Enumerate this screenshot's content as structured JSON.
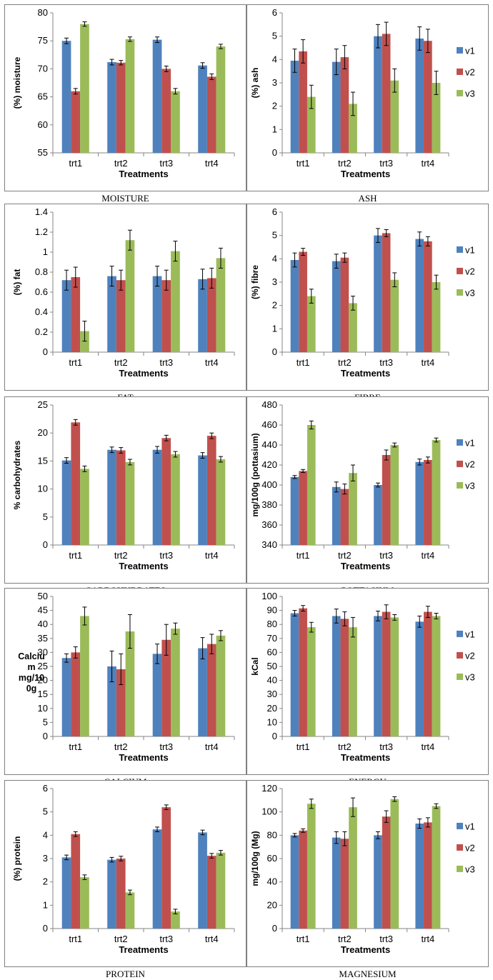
{
  "series_colors": {
    "v1": "#4f81bd",
    "v2": "#c0504d",
    "v3": "#9bbb59"
  },
  "chart_data": [
    {
      "type": "bar",
      "caption": "MOISTURE",
      "xlabel": "Treatments",
      "ylabel": "(%)  moisture",
      "categories": [
        "trt1",
        "trt2",
        "trt3",
        "trt4"
      ],
      "ylim": [
        55,
        80
      ],
      "yticks": [
        55,
        60,
        65,
        70,
        75,
        80
      ],
      "legend": "none",
      "legend_entries": [],
      "series": [
        {
          "values": [
            75.0,
            71.2,
            75.2,
            70.6
          ],
          "errors": [
            0.5,
            0.5,
            0.5,
            0.5
          ]
        },
        {
          "values": [
            66.0,
            71.1,
            70.0,
            68.6
          ],
          "errors": [
            0.5,
            0.4,
            0.5,
            0.5
          ]
        },
        {
          "values": [
            78.0,
            75.3,
            66.0,
            74.0
          ],
          "errors": [
            0.4,
            0.4,
            0.5,
            0.4
          ]
        }
      ]
    },
    {
      "type": "bar",
      "caption": "ASH",
      "xlabel": "Treatments",
      "ylabel": "(%)  ash",
      "categories": [
        "trt1",
        "trt2",
        "trt3",
        "trt4"
      ],
      "ylim": [
        0,
        6
      ],
      "yticks": [
        0,
        1,
        2,
        3,
        4,
        5,
        6
      ],
      "legend": "right",
      "legend_entries": [
        "v1",
        "v2",
        "v3"
      ],
      "series": [
        {
          "values": [
            3.95,
            3.9,
            5.0,
            4.9
          ],
          "errors": [
            0.5,
            0.55,
            0.5,
            0.5
          ]
        },
        {
          "values": [
            4.35,
            4.1,
            5.1,
            4.8
          ],
          "errors": [
            0.5,
            0.5,
            0.5,
            0.5
          ]
        },
        {
          "values": [
            2.4,
            2.1,
            3.1,
            3.0
          ],
          "errors": [
            0.5,
            0.5,
            0.5,
            0.5
          ]
        }
      ]
    },
    {
      "type": "bar",
      "caption": "FAT",
      "xlabel": "Treatments",
      "ylabel": "(%)  fat",
      "categories": [
        "trt1",
        "trt2",
        "trt3",
        "trt4"
      ],
      "ylim": [
        0,
        1.4
      ],
      "yticks": [
        0,
        0.2,
        0.4,
        0.6,
        0.8,
        1,
        1.2,
        1.4
      ],
      "legend": "none",
      "legend_entries": [],
      "series": [
        {
          "values": [
            0.72,
            0.76,
            0.76,
            0.73
          ],
          "errors": [
            0.1,
            0.1,
            0.1,
            0.1
          ]
        },
        {
          "values": [
            0.75,
            0.72,
            0.72,
            0.74
          ],
          "errors": [
            0.1,
            0.1,
            0.1,
            0.1
          ]
        },
        {
          "values": [
            0.21,
            1.12,
            1.01,
            0.94
          ],
          "errors": [
            0.1,
            0.1,
            0.1,
            0.1
          ]
        }
      ]
    },
    {
      "type": "bar",
      "caption": "FIBRE",
      "xlabel": "Treatments",
      "ylabel": "(%)  fibre",
      "categories": [
        "trt1",
        "trt2",
        "trt3",
        "trt4"
      ],
      "ylim": [
        0,
        6
      ],
      "yticks": [
        0,
        1,
        2,
        3,
        4,
        5,
        6
      ],
      "legend": "right",
      "legend_entries": [
        "v1",
        "v2",
        "v3"
      ],
      "series": [
        {
          "values": [
            3.95,
            3.9,
            5.0,
            4.85
          ],
          "errors": [
            0.3,
            0.3,
            0.3,
            0.3
          ]
        },
        {
          "values": [
            4.3,
            4.05,
            5.1,
            4.75
          ],
          "errors": [
            0.15,
            0.2,
            0.15,
            0.2
          ]
        },
        {
          "values": [
            2.4,
            2.1,
            3.1,
            3.0
          ],
          "errors": [
            0.3,
            0.3,
            0.3,
            0.3
          ]
        }
      ]
    },
    {
      "type": "bar",
      "caption": "CARBOHYDRATES",
      "xlabel": "Treatments",
      "ylabel": "% carbohydrates",
      "categories": [
        "trt1",
        "trt2",
        "trt3",
        "trt4"
      ],
      "ylim": [
        0,
        25
      ],
      "yticks": [
        0,
        5,
        10,
        15,
        20,
        25
      ],
      "legend": "none",
      "legend_entries": [],
      "series": [
        {
          "values": [
            15.1,
            17.0,
            17.0,
            16.0
          ],
          "errors": [
            0.5,
            0.5,
            0.6,
            0.5
          ]
        },
        {
          "values": [
            21.9,
            16.9,
            19.1,
            19.5
          ],
          "errors": [
            0.5,
            0.5,
            0.5,
            0.5
          ]
        },
        {
          "values": [
            13.6,
            14.8,
            16.2,
            15.3
          ],
          "errors": [
            0.5,
            0.5,
            0.5,
            0.5
          ]
        }
      ]
    },
    {
      "type": "bar",
      "caption": "POTTASIUM",
      "xlabel": "Treatments",
      "ylabel": "mg/100g (pottasium)",
      "categories": [
        "trt1",
        "trt2",
        "trt3",
        "trt4"
      ],
      "ylim": [
        340,
        480
      ],
      "yticks": [
        340,
        360,
        380,
        400,
        420,
        440,
        460,
        480
      ],
      "legend": "right",
      "legend_entries": [
        "v1",
        "v2",
        "v3"
      ],
      "series": [
        {
          "values": [
            408,
            398,
            400,
            423
          ],
          "errors": [
            1.5,
            5,
            2,
            3
          ]
        },
        {
          "values": [
            414,
            396,
            430,
            425
          ],
          "errors": [
            1.5,
            5,
            5,
            3
          ]
        },
        {
          "values": [
            460,
            412,
            440,
            445
          ],
          "errors": [
            4,
            8,
            2,
            2
          ]
        }
      ]
    },
    {
      "type": "bar",
      "caption": "CALCIUM",
      "xlabel": "Treatments",
      "ylabel": "Calcium mg/100g",
      "ylabel_lines": [
        "Calciu",
        "m",
        "mg/10",
        "0g"
      ],
      "categories": [
        "trt1",
        "trt2",
        "trt3",
        "trt4"
      ],
      "ylim": [
        0,
        50
      ],
      "yticks": [
        0,
        5,
        10,
        15,
        20,
        25,
        30,
        35,
        40,
        45,
        50
      ],
      "legend": "none",
      "legend_entries": [],
      "series": [
        {
          "values": [
            28,
            25,
            29.5,
            31.5
          ],
          "errors": [
            1.5,
            5.5,
            3.5,
            3.8
          ]
        },
        {
          "values": [
            30,
            24,
            34.5,
            33
          ],
          "errors": [
            2,
            5.5,
            5.5,
            3.5
          ]
        },
        {
          "values": [
            43,
            37.5,
            38.5,
            36
          ],
          "errors": [
            3.2,
            6,
            2,
            1.8
          ]
        }
      ]
    },
    {
      "type": "bar",
      "caption": "ENERGY",
      "xlabel": "Treatments",
      "ylabel": "kCal",
      "categories": [
        "trt1",
        "trt2",
        "trt3",
        "trt4"
      ],
      "ylim": [
        0,
        100
      ],
      "yticks": [
        0,
        10,
        20,
        30,
        40,
        50,
        60,
        70,
        80,
        90,
        100
      ],
      "legend": "right",
      "legend_entries": [
        "v1",
        "v2",
        "v3"
      ],
      "series": [
        {
          "values": [
            88,
            86,
            86,
            82
          ],
          "errors": [
            2,
            5,
            3.5,
            4
          ]
        },
        {
          "values": [
            91.5,
            84,
            89,
            89
          ],
          "errors": [
            2,
            5,
            5,
            4
          ]
        },
        {
          "values": [
            78,
            78,
            85,
            86
          ],
          "errors": [
            3.5,
            7,
            2,
            2
          ]
        }
      ]
    },
    {
      "type": "bar",
      "caption": "PROTEIN",
      "xlabel": "Treatments",
      "ylabel": "(%)  protein",
      "categories": [
        "trt1",
        "trt2",
        "trt3",
        "trt4"
      ],
      "ylim": [
        0,
        6
      ],
      "yticks": [
        0,
        1,
        2,
        3,
        4,
        5,
        6
      ],
      "legend": "none",
      "legend_entries": [],
      "series": [
        {
          "values": [
            3.05,
            2.95,
            4.25,
            4.12
          ],
          "errors": [
            0.1,
            0.1,
            0.1,
            0.1
          ]
        },
        {
          "values": [
            4.05,
            3.0,
            5.2,
            3.12
          ],
          "errors": [
            0.1,
            0.1,
            0.1,
            0.1
          ]
        },
        {
          "values": [
            2.2,
            1.55,
            0.73,
            3.25
          ],
          "errors": [
            0.1,
            0.1,
            0.1,
            0.1
          ]
        }
      ]
    },
    {
      "type": "bar",
      "caption": "MAGNESIUM",
      "xlabel": "Treatments",
      "ylabel": "mg/100g (Mg)",
      "categories": [
        "trt1",
        "trt2",
        "trt3",
        "trt4"
      ],
      "ylim": [
        0,
        120
      ],
      "yticks": [
        0,
        20,
        40,
        60,
        80,
        100,
        120
      ],
      "legend": "right",
      "legend_entries": [
        "v1",
        "v2",
        "v3"
      ],
      "series": [
        {
          "values": [
            80,
            78,
            80,
            90
          ],
          "errors": [
            1.5,
            5,
            3,
            4
          ]
        },
        {
          "values": [
            84,
            77,
            96,
            91
          ],
          "errors": [
            1.5,
            6,
            5,
            4
          ]
        },
        {
          "values": [
            107,
            104,
            111,
            105
          ],
          "errors": [
            4,
            8,
            2,
            2
          ]
        }
      ]
    }
  ]
}
